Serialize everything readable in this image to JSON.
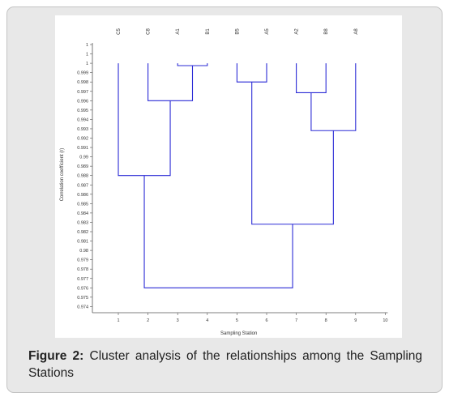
{
  "caption": {
    "label": "Figure 2:",
    "text": "Cluster analysis of the relationships among the Sampling Stations"
  },
  "chart_data": {
    "type": "dendrogram",
    "xlabel": "Sampling Station",
    "ylabel": "Correlation coefficient (r)",
    "xlim": [
      0,
      10
    ],
    "x_ticks": [
      1,
      2,
      3,
      4,
      5,
      6,
      7,
      8,
      9,
      10
    ],
    "ylim": [
      0.974,
      1.0
    ],
    "y_ticks": [
      "1",
      "1",
      "1",
      "0.999",
      "0.998",
      "0.997",
      "0.996",
      "0.995",
      "0.994",
      "0.993",
      "0.992",
      "0.991",
      "0.99",
      "0.989",
      "0.988",
      "0.987",
      "0.986",
      "0.985",
      "0.984",
      "0.983",
      "0.982",
      "0.981",
      "0.98",
      "0.979",
      "0.978",
      "0.977",
      "0.976",
      "0.975",
      "0.974"
    ],
    "leaves": [
      "C5",
      "C8",
      "A1",
      "B1",
      "B5",
      "A5",
      "A2",
      "B8",
      "A8"
    ],
    "merges": [
      {
        "left": 3,
        "right": 4,
        "height": 0.99975
      },
      {
        "left": 5,
        "right": 6,
        "height": 0.998
      },
      {
        "left": 2,
        "right": 3.5,
        "height": 0.996
      },
      {
        "left": 7,
        "right": 8,
        "height": 0.99685
      },
      {
        "left": 7.5,
        "right": 9,
        "height": 0.9928
      },
      {
        "left": 1,
        "right": 2.75,
        "height": 0.988
      },
      {
        "left": 5.5,
        "right": 8.25,
        "height": 0.9828
      },
      {
        "left": 1.875,
        "right": 6.875,
        "height": 0.976
      }
    ],
    "line_color": "#2b2bd6",
    "grid": false
  }
}
